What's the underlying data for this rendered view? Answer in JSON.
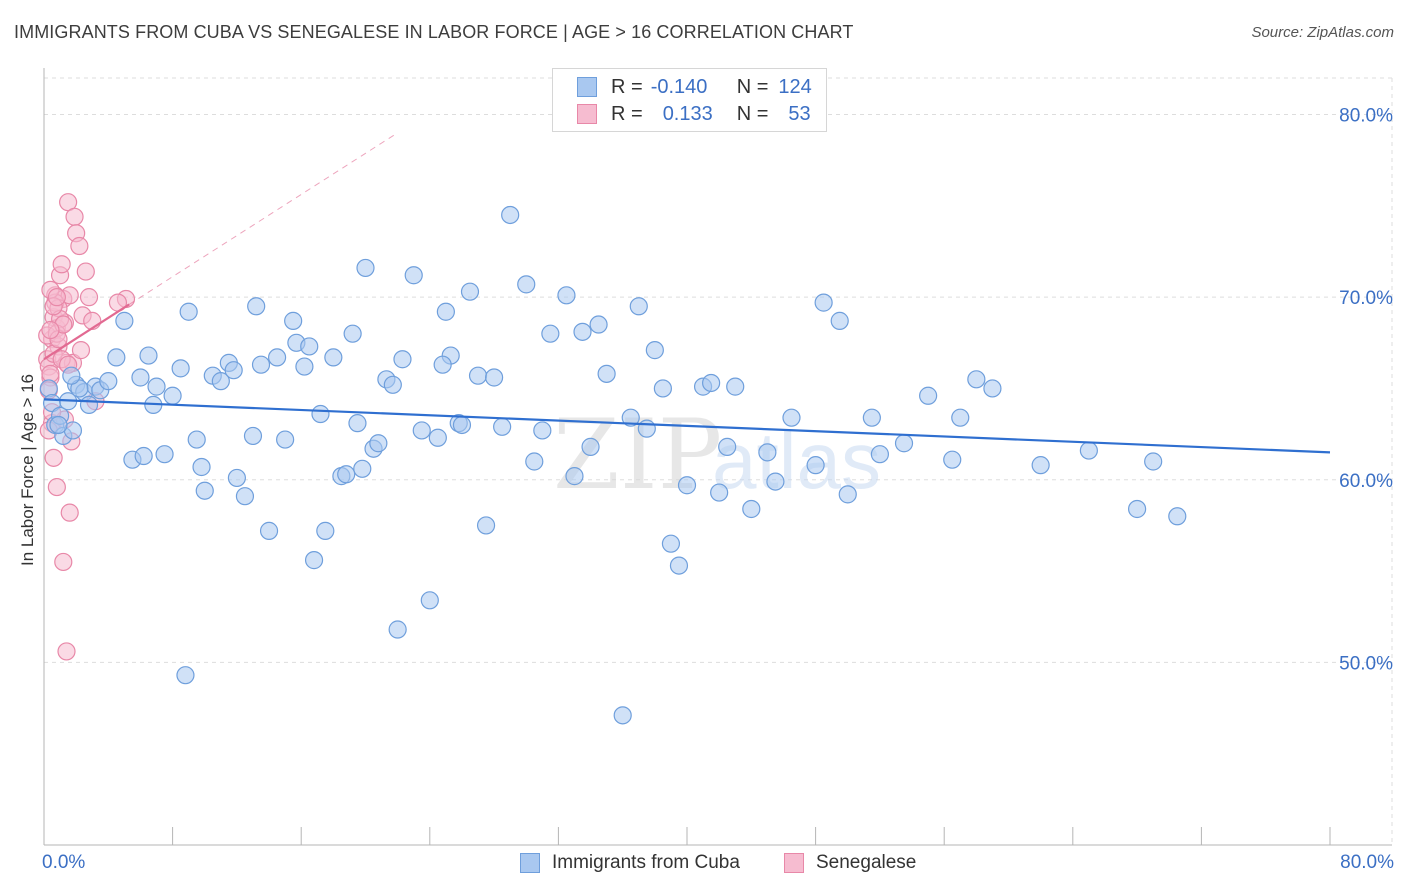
{
  "title": "IMMIGRANTS FROM CUBA VS SENEGALESE IN LABOR FORCE | AGE > 16 CORRELATION CHART",
  "source": "Source: ZipAtlas.com",
  "watermark": {
    "zip": "ZIP",
    "atlas": "atlas"
  },
  "legend": {
    "rows": [
      {
        "r_label": "R =",
        "r_value": "-0.140",
        "n_label": "N =",
        "n_value": "124"
      },
      {
        "r_label": "R =",
        "r_value": "0.133",
        "n_label": "N =",
        "n_value": "53"
      }
    ]
  },
  "bottom_legend": {
    "items": [
      "Immigrants from Cuba",
      "Senegalese"
    ]
  },
  "colors": {
    "blue_fill": "#a9c8f0",
    "blue_stroke": "#6f9fdc",
    "blue_line": "#2f6fd0",
    "pink_fill": "#f6bcd0",
    "pink_stroke": "#e888a8",
    "pink_line": "#e26a92",
    "grid": "#dddddd",
    "tick_text": "#3b6fc4"
  },
  "chart_data": {
    "type": "scatter",
    "title": "IMMIGRANTS FROM CUBA VS SENEGALESE IN LABOR FORCE | AGE > 16 CORRELATION CHART",
    "xlabel": "",
    "ylabel": "In Labor Force | Age > 16",
    "xlim": [
      0,
      80
    ],
    "ylim": [
      40,
      82
    ],
    "x_tick_labels": [
      "0.0%",
      "80.0%"
    ],
    "y_ticks": [
      50,
      60,
      70,
      80
    ],
    "y_tick_labels": [
      "50.0%",
      "60.0%",
      "70.0%",
      "80.0%"
    ],
    "grid": true,
    "series": [
      {
        "name": "Immigrants from Cuba",
        "r": -0.14,
        "n": 124,
        "trend": {
          "x0": 0,
          "y0": 64.4,
          "x1": 80,
          "y1": 61.5
        },
        "points": [
          [
            0.3,
            65.0
          ],
          [
            0.5,
            64.2
          ],
          [
            0.7,
            63.0
          ],
          [
            1.0,
            63.5
          ],
          [
            1.2,
            62.4
          ],
          [
            1.5,
            64.3
          ],
          [
            1.8,
            62.7
          ],
          [
            2.0,
            65.2
          ],
          [
            2.5,
            64.8
          ],
          [
            2.8,
            64.1
          ],
          [
            3.2,
            65.1
          ],
          [
            4.5,
            66.7
          ],
          [
            5.0,
            68.7
          ],
          [
            5.5,
            61.1
          ],
          [
            6.0,
            65.6
          ],
          [
            6.5,
            66.8
          ],
          [
            6.8,
            64.1
          ],
          [
            7.0,
            65.1
          ],
          [
            7.5,
            61.4
          ],
          [
            8.0,
            64.6
          ],
          [
            8.5,
            66.1
          ],
          [
            9.0,
            69.2
          ],
          [
            9.5,
            62.2
          ],
          [
            10.0,
            59.4
          ],
          [
            10.5,
            65.7
          ],
          [
            11.0,
            65.4
          ],
          [
            11.5,
            66.4
          ],
          [
            12.0,
            60.1
          ],
          [
            12.5,
            59.1
          ],
          [
            13.0,
            62.4
          ],
          [
            13.5,
            66.3
          ],
          [
            14.5,
            66.7
          ],
          [
            15.0,
            62.2
          ],
          [
            15.5,
            68.7
          ],
          [
            15.7,
            67.5
          ],
          [
            16.2,
            66.2
          ],
          [
            16.5,
            67.3
          ],
          [
            16.8,
            55.6
          ],
          [
            17.2,
            63.6
          ],
          [
            17.5,
            57.2
          ],
          [
            18.0,
            66.7
          ],
          [
            18.5,
            60.2
          ],
          [
            18.8,
            60.3
          ],
          [
            19.2,
            68.0
          ],
          [
            19.5,
            63.1
          ],
          [
            20.0,
            71.6
          ],
          [
            20.5,
            61.7
          ],
          [
            20.8,
            62.0
          ],
          [
            21.3,
            65.5
          ],
          [
            21.7,
            65.2
          ],
          [
            22.0,
            51.8
          ],
          [
            22.3,
            66.6
          ],
          [
            23.0,
            71.2
          ],
          [
            23.5,
            62.7
          ],
          [
            24.0,
            53.4
          ],
          [
            24.5,
            62.3
          ],
          [
            25.0,
            69.2
          ],
          [
            25.3,
            66.8
          ],
          [
            25.8,
            63.1
          ],
          [
            26.0,
            63.0
          ],
          [
            26.5,
            70.3
          ],
          [
            27.0,
            65.7
          ],
          [
            28.0,
            65.6
          ],
          [
            29.0,
            74.5
          ],
          [
            30.0,
            70.7
          ],
          [
            30.5,
            61.0
          ],
          [
            31.0,
            62.7
          ],
          [
            31.5,
            68.0
          ],
          [
            32.5,
            70.1
          ],
          [
            33.0,
            60.2
          ],
          [
            33.5,
            68.1
          ],
          [
            34.0,
            61.8
          ],
          [
            34.5,
            68.5
          ],
          [
            35.0,
            65.8
          ],
          [
            36.0,
            47.1
          ],
          [
            37.0,
            69.5
          ],
          [
            37.5,
            62.8
          ],
          [
            38.0,
            67.1
          ],
          [
            38.5,
            65.0
          ],
          [
            39.0,
            56.5
          ],
          [
            39.5,
            55.3
          ],
          [
            40.0,
            59.7
          ],
          [
            41.0,
            65.1
          ],
          [
            41.5,
            65.3
          ],
          [
            42.0,
            59.3
          ],
          [
            42.5,
            61.8
          ],
          [
            43.0,
            65.1
          ],
          [
            44.0,
            58.4
          ],
          [
            45.0,
            61.5
          ],
          [
            45.5,
            59.9
          ],
          [
            46.5,
            63.4
          ],
          [
            48.0,
            60.8
          ],
          [
            48.5,
            69.7
          ],
          [
            49.5,
            68.7
          ],
          [
            50.0,
            59.2
          ],
          [
            51.5,
            63.4
          ],
          [
            52.0,
            61.4
          ],
          [
            53.5,
            62.0
          ],
          [
            55.0,
            64.6
          ],
          [
            56.5,
            61.1
          ],
          [
            57.0,
            63.4
          ],
          [
            58.0,
            65.5
          ],
          [
            59.0,
            65.0
          ],
          [
            62.0,
            60.8
          ],
          [
            65.0,
            61.6
          ],
          [
            68.0,
            58.4
          ],
          [
            69.0,
            61.0
          ],
          [
            70.5,
            58.0
          ],
          [
            2.2,
            65.0
          ],
          [
            3.5,
            64.9
          ],
          [
            6.2,
            61.3
          ],
          [
            9.8,
            60.7
          ],
          [
            14.0,
            57.2
          ],
          [
            11.8,
            66.0
          ],
          [
            19.8,
            60.6
          ],
          [
            24.8,
            66.3
          ],
          [
            27.5,
            57.5
          ],
          [
            13.2,
            69.5
          ],
          [
            28.5,
            62.9
          ],
          [
            0.9,
            63.0
          ],
          [
            1.7,
            65.7
          ],
          [
            4.0,
            65.4
          ],
          [
            8.8,
            49.3
          ],
          [
            36.5,
            63.4
          ]
        ]
      },
      {
        "name": "Senegalese",
        "r": 0.133,
        "n": 53,
        "trend": {
          "x0": 0,
          "y0": 66.6,
          "x1": 5.3,
          "y1": 69.6
        },
        "trend_extension": {
          "x0": 5.3,
          "y0": 69.6,
          "x1": 22,
          "y1": 79.0
        },
        "points": [
          [
            0.2,
            66.6
          ],
          [
            0.3,
            66.2
          ],
          [
            0.4,
            65.6
          ],
          [
            0.5,
            67.7
          ],
          [
            0.6,
            68.9
          ],
          [
            0.7,
            70.1
          ],
          [
            0.8,
            68.3
          ],
          [
            0.9,
            67.3
          ],
          [
            1.0,
            71.2
          ],
          [
            1.1,
            71.8
          ],
          [
            1.2,
            69.9
          ],
          [
            1.3,
            68.6
          ],
          [
            1.4,
            66.4
          ],
          [
            1.5,
            75.2
          ],
          [
            1.6,
            70.1
          ],
          [
            1.8,
            66.4
          ],
          [
            1.9,
            74.4
          ],
          [
            2.0,
            73.5
          ],
          [
            2.2,
            72.8
          ],
          [
            2.4,
            69.0
          ],
          [
            2.6,
            71.4
          ],
          [
            2.8,
            70.0
          ],
          [
            3.0,
            68.7
          ],
          [
            3.2,
            64.3
          ],
          [
            0.3,
            64.9
          ],
          [
            0.5,
            63.1
          ],
          [
            0.6,
            61.2
          ],
          [
            0.8,
            59.6
          ],
          [
            1.2,
            55.5
          ],
          [
            1.4,
            50.6
          ],
          [
            1.6,
            58.2
          ],
          [
            0.4,
            65.8
          ],
          [
            0.7,
            69.7
          ],
          [
            0.9,
            69.4
          ],
          [
            1.0,
            68.8
          ],
          [
            0.2,
            67.9
          ],
          [
            0.4,
            70.4
          ],
          [
            0.6,
            66.9
          ],
          [
            0.8,
            68.0
          ],
          [
            1.1,
            66.6
          ],
          [
            1.3,
            63.3
          ],
          [
            1.7,
            62.1
          ],
          [
            5.1,
            69.9
          ],
          [
            0.3,
            62.7
          ],
          [
            0.5,
            63.7
          ],
          [
            0.9,
            67.7
          ],
          [
            1.2,
            68.5
          ],
          [
            0.6,
            69.5
          ],
          [
            0.8,
            70.0
          ],
          [
            1.5,
            66.3
          ],
          [
            2.3,
            67.1
          ],
          [
            0.4,
            68.2
          ],
          [
            4.6,
            69.7
          ]
        ]
      }
    ]
  }
}
